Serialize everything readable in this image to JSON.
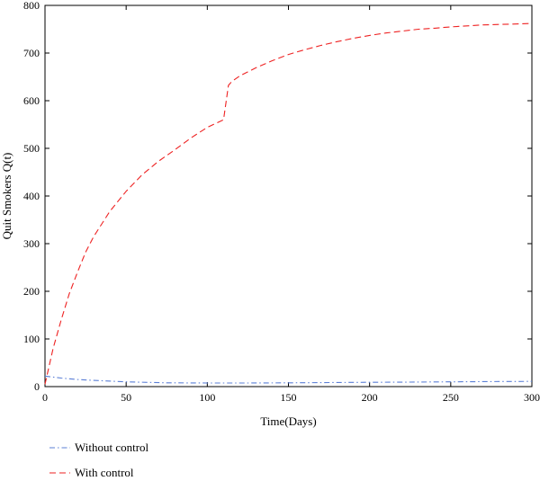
{
  "chart_data": {
    "type": "line",
    "title": "",
    "xlabel": "Time(Days)",
    "ylabel": "Quit Smokers Q(t)",
    "xlim": [
      0,
      300
    ],
    "ylim": [
      0,
      800
    ],
    "xticks": [
      0,
      50,
      100,
      150,
      200,
      250,
      300
    ],
    "yticks": [
      0,
      100,
      200,
      300,
      400,
      500,
      600,
      700,
      800
    ],
    "grid": false,
    "legend_position": "bottom-left",
    "series": [
      {
        "name": "Without control",
        "color": "#5b7fd6",
        "line_style": "dash-dot",
        "x": [
          0,
          5,
          10,
          20,
          30,
          50,
          75,
          100,
          125,
          150,
          175,
          200,
          225,
          250,
          275,
          300
        ],
        "y": [
          22,
          20,
          18,
          15,
          13,
          10,
          8,
          7.5,
          7.5,
          8,
          8.5,
          9,
          9.5,
          10,
          10.5,
          11
        ]
      },
      {
        "name": "With control",
        "color": "#ee2222",
        "line_style": "dashed",
        "x": [
          0,
          5,
          10,
          15,
          20,
          25,
          30,
          40,
          50,
          60,
          70,
          80,
          90,
          100,
          110,
          113,
          115,
          120,
          130,
          140,
          150,
          160,
          170,
          180,
          190,
          200,
          210,
          220,
          230,
          240,
          250,
          260,
          270,
          280,
          290,
          300
        ],
        "y": [
          5,
          80,
          140,
          195,
          240,
          282,
          315,
          368,
          410,
          445,
          473,
          497,
          522,
          544,
          560,
          632,
          640,
          652,
          669,
          684,
          697,
          707,
          716,
          724,
          731,
          737,
          742,
          746,
          750,
          752,
          755,
          757,
          759,
          760,
          761,
          762
        ]
      }
    ]
  }
}
